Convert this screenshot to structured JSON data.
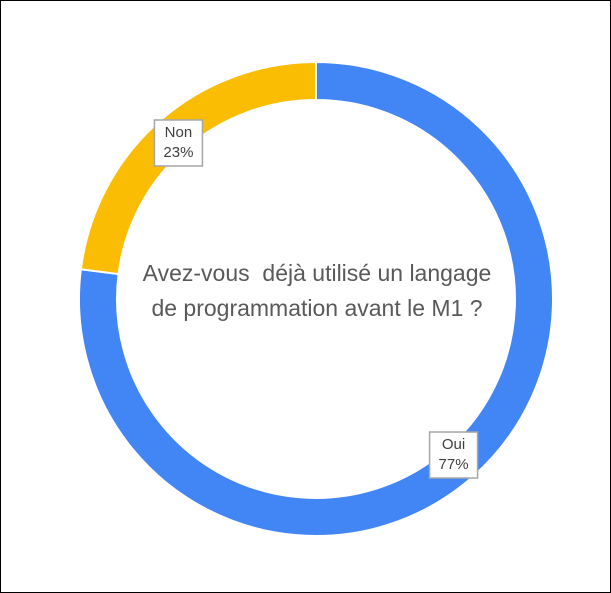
{
  "chart_data": {
    "type": "donut",
    "title": "Avez-vous  déjà utilisé un langage de programmation avant le M1 ?",
    "categories": [
      "Oui",
      "Non"
    ],
    "values": [
      77,
      23
    ],
    "value_labels": [
      "77%",
      "23%"
    ],
    "colors": [
      "#4285f4",
      "#fbbc04"
    ]
  }
}
